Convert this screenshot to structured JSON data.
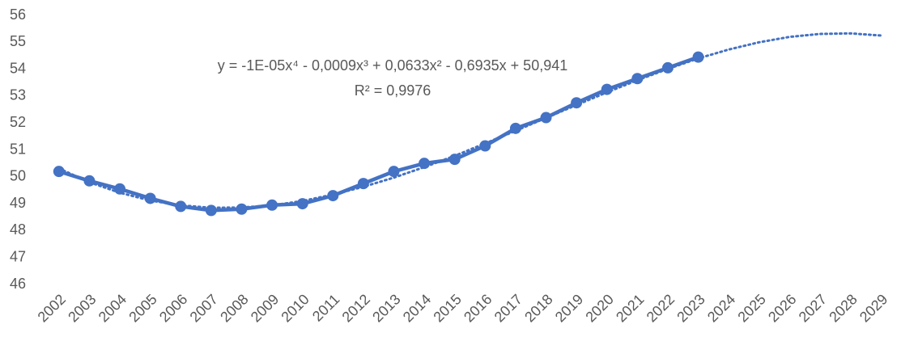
{
  "chart_data": {
    "type": "line",
    "categories": [
      "2002",
      "2003",
      "2004",
      "2005",
      "2006",
      "2007",
      "2008",
      "2009",
      "2010",
      "2011",
      "2012",
      "2013",
      "2014",
      "2015",
      "2016",
      "2017",
      "2018",
      "2019",
      "2020",
      "2021",
      "2022",
      "2023",
      "2024",
      "2025",
      "2026",
      "2027",
      "2028",
      "2029"
    ],
    "series": [
      {
        "color": "#4472c4",
        "values": [
          50.2,
          49.85,
          49.55,
          49.2,
          48.9,
          48.75,
          48.8,
          48.95,
          49.0,
          49.3,
          49.75,
          50.2,
          50.5,
          50.65,
          51.15,
          51.8,
          52.2,
          52.75,
          53.25,
          53.65,
          54.05,
          54.45,
          null,
          null,
          null,
          null,
          null,
          null
        ]
      }
    ],
    "trendline": {
      "color": "#4472c4",
      "dotted": true,
      "values": [
        50.31,
        49.8,
        49.41,
        49.12,
        48.94,
        48.85,
        48.86,
        48.94,
        49.1,
        49.34,
        49.63,
        49.97,
        50.36,
        50.78,
        51.24,
        51.71,
        52.19,
        52.67,
        53.14,
        53.59,
        54.01,
        54.4,
        54.73,
        55.0,
        55.2,
        55.31,
        55.33,
        55.25
      ]
    },
    "annotations": [
      "y = -1E-05x⁴ - 0,0009x³ + 0,0633x² - 0,6935x + 50,941",
      "R² = 0,9976"
    ],
    "ylim": [
      46,
      56
    ],
    "yticks": [
      46,
      47,
      48,
      49,
      50,
      51,
      52,
      53,
      54,
      55,
      56
    ],
    "grid": false
  }
}
